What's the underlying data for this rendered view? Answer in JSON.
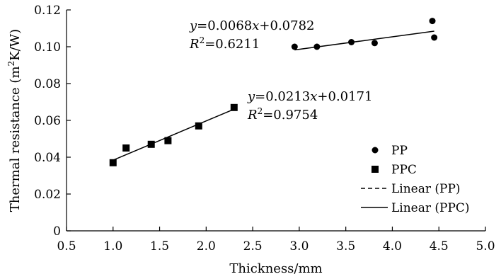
{
  "chart_data": {
    "type": "scatter",
    "xlabel": "Thickness/mm",
    "ylabel_main": "Thermal resistance (m",
    "ylabel_sup": "2",
    "ylabel_rest": "K/W)",
    "xlim": [
      0.5,
      5.0
    ],
    "ylim": [
      0,
      0.12
    ],
    "xticks": [
      "0.5",
      "1.0",
      "1.5",
      "2.0",
      "2.5",
      "3.0",
      "3.5",
      "4.0",
      "4.5",
      "5.0"
    ],
    "yticks": [
      "0",
      "0.02",
      "0.04",
      "0.06",
      "0.08",
      "0.10",
      "0.12"
    ],
    "grid": false,
    "legend_position": "right",
    "series": [
      {
        "name": "PP",
        "marker": "circle",
        "x": [
          2.95,
          3.19,
          3.56,
          3.81,
          4.43,
          4.45
        ],
        "y": [
          0.1,
          0.1,
          0.1025,
          0.102,
          0.114,
          0.105
        ]
      },
      {
        "name": "PPC",
        "marker": "square",
        "x": [
          1.0,
          1.14,
          1.41,
          1.59,
          1.92,
          2.3
        ],
        "y": [
          0.037,
          0.045,
          0.047,
          0.049,
          0.057,
          0.067
        ]
      }
    ],
    "fits": [
      {
        "name": "Linear (PP)",
        "style": "dashed",
        "x_range": [
          2.95,
          4.45
        ],
        "slope": 0.0068,
        "intercept": 0.0782
      },
      {
        "name": "Linear (PPC)",
        "style": "solid",
        "x_range": [
          1.0,
          2.3
        ],
        "slope": 0.0213,
        "intercept": 0.0171
      }
    ],
    "annotations": {
      "pp_eq_y": "y",
      "pp_eq_coef": "=0.0068",
      "pp_eq_x": "x",
      "pp_eq_rest": "+0.0782",
      "pp_r2_R": "R",
      "pp_r2_sup": "2",
      "pp_r2_val": "=0.6211",
      "ppc_eq_y": "y",
      "ppc_eq_coef": "=0.0213",
      "ppc_eq_x": "x",
      "ppc_eq_rest": "+0.0171",
      "ppc_r2_R": "R",
      "ppc_r2_sup": "2",
      "ppc_r2_val": "=0.9754"
    }
  }
}
